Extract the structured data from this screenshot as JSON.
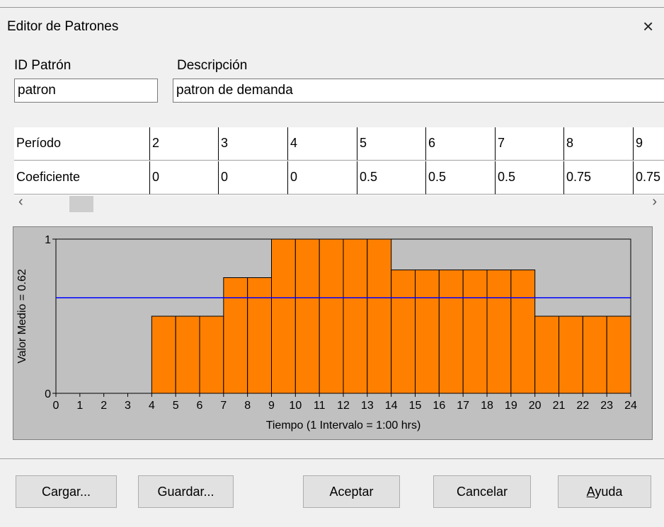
{
  "window": {
    "title": "Editor de Patrones"
  },
  "fields": {
    "id_label": "ID Patrón",
    "id_value": "patron",
    "desc_label": "Descripción",
    "desc_value": "patron de demanda"
  },
  "table": {
    "rows": [
      [
        "Período",
        "2",
        "3",
        "4",
        "5",
        "6",
        "7",
        "8",
        "9"
      ],
      [
        "Coeficiente",
        "0",
        "0",
        "0",
        "0.5",
        "0.5",
        "0.5",
        "0.75",
        "0.75"
      ]
    ]
  },
  "chart_data": {
    "type": "bar",
    "ylabel": "Valor Medio = 0.62",
    "xlabel": "Tiempo (1 Intervalo = 1:00 hrs)",
    "xlim": [
      0,
      24
    ],
    "xticks": [
      0,
      1,
      2,
      3,
      4,
      5,
      6,
      7,
      8,
      9,
      10,
      11,
      12,
      13,
      14,
      15,
      16,
      17,
      18,
      19,
      20,
      21,
      22,
      23,
      24
    ],
    "ylim": [
      0,
      1
    ],
    "yticks": [
      0,
      1
    ],
    "values": [
      0,
      0,
      0,
      0,
      0.5,
      0.5,
      0.5,
      0.75,
      0.75,
      1,
      1,
      1,
      1,
      1,
      0.8,
      0.8,
      0.8,
      0.8,
      0.8,
      0.8,
      0.5,
      0.5,
      0.5,
      0.5
    ],
    "color": "#ff8000",
    "mean": 0.62,
    "mean_color": "#0000ff"
  },
  "buttons": [
    "Cargar...",
    "Guardar...",
    "Aceptar",
    "Cancelar",
    "Ayuda"
  ]
}
